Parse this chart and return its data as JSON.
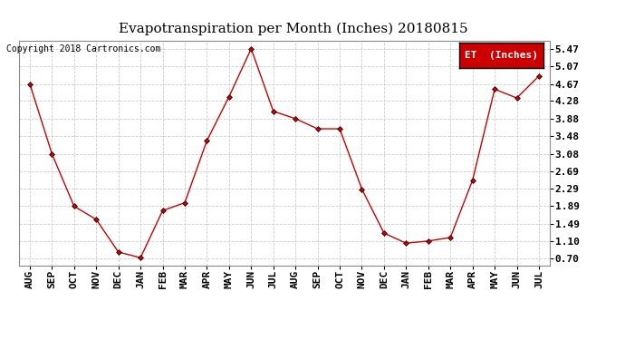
{
  "title": "Evapotranspiration per Month (Inches) 20180815",
  "copyright": "Copyright 2018 Cartronics.com",
  "legend_label": "ET  (Inches)",
  "x_labels": [
    "AUG",
    "SEP",
    "OCT",
    "NOV",
    "DEC",
    "JAN",
    "FEB",
    "MAR",
    "APR",
    "MAY",
    "JUN",
    "JUL",
    "AUG",
    "SEP",
    "OCT",
    "NOV",
    "DEC",
    "JAN",
    "FEB",
    "MAR",
    "APR",
    "MAY",
    "JUN",
    "JUL"
  ],
  "y_values": [
    4.67,
    3.08,
    1.89,
    1.59,
    0.85,
    0.72,
    1.79,
    1.97,
    3.38,
    4.38,
    5.47,
    4.05,
    3.88,
    3.65,
    3.65,
    2.28,
    1.28,
    1.05,
    1.1,
    1.18,
    2.48,
    4.55,
    4.35,
    4.85
  ],
  "y_ticks": [
    0.7,
    1.1,
    1.49,
    1.89,
    2.29,
    2.69,
    3.08,
    3.48,
    3.88,
    4.28,
    4.67,
    5.07,
    5.47
  ],
  "line_color": "#cc0000",
  "marker": "D",
  "marker_size": 3,
  "background_color": "#ffffff",
  "grid_color": "#cccccc",
  "title_fontsize": 11,
  "tick_fontsize": 8,
  "copyright_fontsize": 7,
  "legend_bg": "#cc0000",
  "legend_text_color": "#ffffff",
  "legend_fontsize": 8,
  "ylim_min": 0.55,
  "ylim_max": 5.65
}
